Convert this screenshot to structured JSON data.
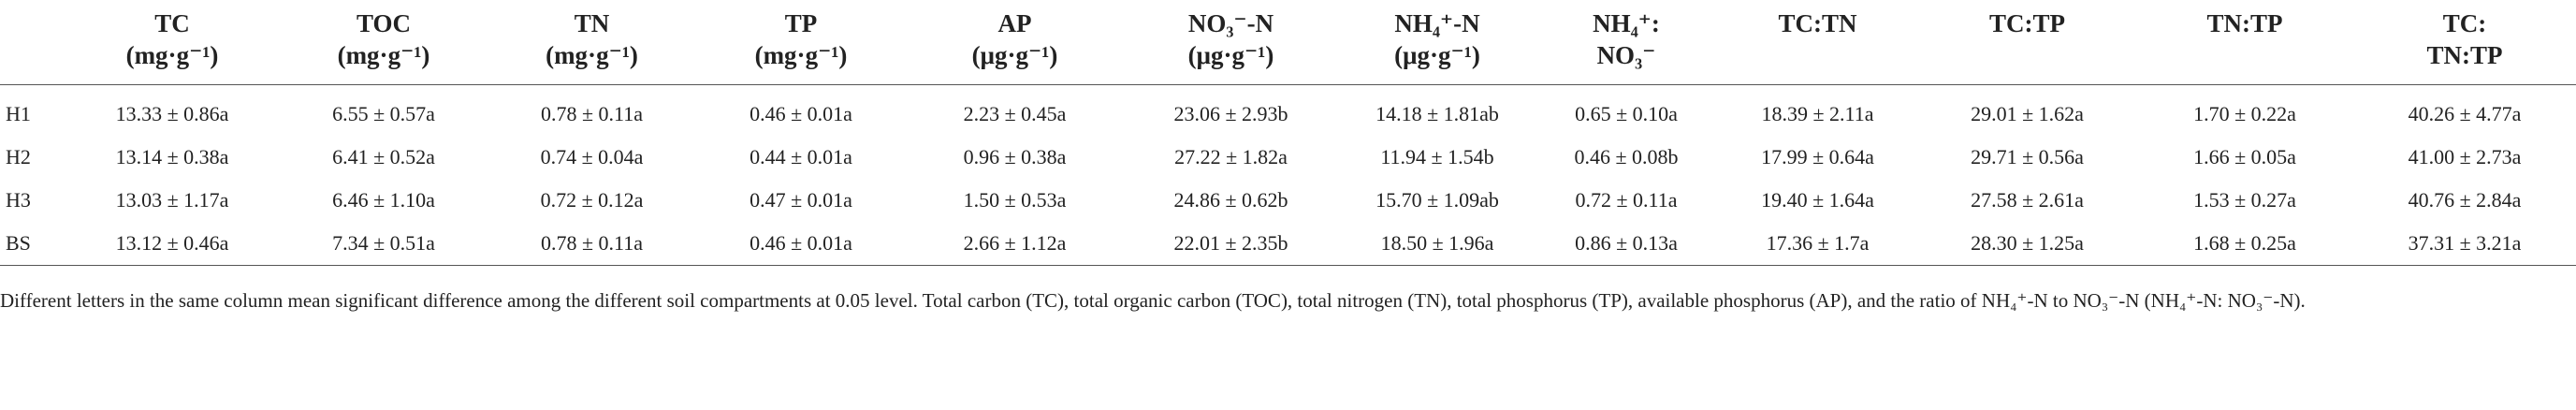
{
  "table": {
    "header": [
      [
        "TC",
        "(mg·g⁻¹)"
      ],
      [
        "TOC",
        "(mg·g⁻¹)"
      ],
      [
        "TN",
        "(mg·g⁻¹)"
      ],
      [
        "TP",
        "(mg·g⁻¹)"
      ],
      [
        "AP",
        "(μg·g⁻¹)"
      ],
      [
        "NO₃⁻-N",
        "(μg·g⁻¹)"
      ],
      [
        "NH₄⁺-N",
        "(μg·g⁻¹)"
      ],
      [
        "NH₄⁺:",
        "NO₃⁻"
      ],
      [
        "TC:TN"
      ],
      [
        "TC:TP"
      ],
      [
        "TN:TP"
      ],
      [
        "TC:",
        "TN:TP"
      ]
    ],
    "rows": [
      [
        "H1",
        "13.33 ± 0.86a",
        "6.55 ± 0.57a",
        "0.78 ± 0.11a",
        "0.46 ± 0.01a",
        "2.23 ± 0.45a",
        "23.06 ± 2.93b",
        "14.18 ± 1.81ab",
        "0.65 ± 0.10a",
        "18.39 ± 2.11a",
        "29.01 ± 1.62a",
        "1.70 ± 0.22a",
        "40.26 ± 4.77a"
      ],
      [
        "H2",
        "13.14 ± 0.38a",
        "6.41 ± 0.52a",
        "0.74 ± 0.04a",
        "0.44 ± 0.01a",
        "0.96 ± 0.38a",
        "27.22 ± 1.82a",
        "11.94 ± 1.54b",
        "0.46 ± 0.08b",
        "17.99 ± 0.64a",
        "29.71 ± 0.56a",
        "1.66 ± 0.05a",
        "41.00 ± 2.73a"
      ],
      [
        "H3",
        "13.03 ± 1.17a",
        "6.46 ± 1.10a",
        "0.72 ± 0.12a",
        "0.47 ± 0.01a",
        "1.50 ± 0.53a",
        "24.86 ± 0.62b",
        "15.70 ± 1.09ab",
        "0.72 ± 0.11a",
        "19.40 ± 1.64a",
        "27.58 ± 2.61a",
        "1.53 ± 0.27a",
        "40.76 ± 2.84a"
      ],
      [
        "BS",
        "13.12 ± 0.46a",
        "7.34 ± 0.51a",
        "0.78 ± 0.11a",
        "0.46 ± 0.01a",
        "2.66 ± 1.12a",
        "22.01 ± 2.35b",
        "18.50 ± 1.96a",
        "0.86 ± 0.13a",
        "17.36 ± 1.7a",
        "28.30 ± 1.25a",
        "1.68 ± 0.25a",
        "37.31 ± 3.21a"
      ]
    ]
  },
  "footnote": "Different letters in the same column mean significant difference among the different soil compartments at 0.05 level. Total carbon (TC), total organic carbon (TOC), total nitrogen (TN), total phosphorus (TP), available phosphorus (AP), and the ratio of NH₄⁺-N to NO₃⁻-N (NH₄⁺-N: NO₃⁻-N)."
}
